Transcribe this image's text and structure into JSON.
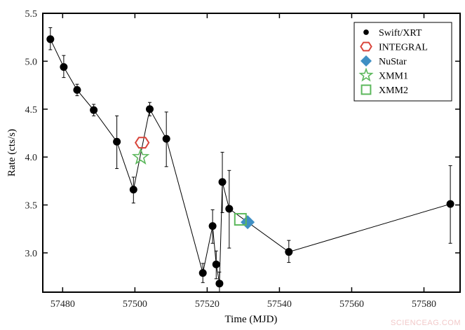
{
  "chart_data": {
    "type": "scatter",
    "title": "",
    "xlabel": "Time (MJD)",
    "ylabel": "Rate (cts/s)",
    "xlim": [
      57474.5,
      57590
    ],
    "ylim": [
      2.59,
      5.5
    ],
    "xticks": [
      57480,
      57500,
      57520,
      57540,
      57560,
      57580
    ],
    "yticks": [
      3.0,
      3.5,
      4.0,
      4.5,
      5.0,
      5.5
    ],
    "xtick_labels": [
      "57480",
      "57500",
      "57520",
      "57540",
      "57560",
      "57580"
    ],
    "ytick_labels": [
      "3.0",
      "3.5",
      "4.0",
      "4.5",
      "5.0",
      "5.5"
    ],
    "grid": false,
    "legend_position": "top-right",
    "series": [
      {
        "name": "Swift/XRT",
        "marker": "circle",
        "color": "#000000",
        "connected": true,
        "x": [
          57476.6,
          57480.3,
          57484.0,
          57488.6,
          57495.0,
          57499.6,
          57504.1,
          57508.7,
          57518.8,
          57521.5,
          57522.5,
          57523.4,
          57524.2,
          57526.1,
          57542.6,
          57587.3
        ],
        "y": [
          5.23,
          4.94,
          4.7,
          4.49,
          4.16,
          3.66,
          4.5,
          4.19,
          2.79,
          3.28,
          2.88,
          2.68,
          3.74,
          3.46,
          3.01,
          3.51
        ],
        "err_low": [
          5.12,
          4.83,
          4.64,
          4.43,
          3.88,
          3.52,
          4.43,
          3.9,
          2.69,
          3.1,
          2.73,
          2.59,
          3.42,
          3.05,
          2.9,
          3.1
        ],
        "err_high": [
          5.35,
          5.06,
          4.76,
          4.55,
          4.43,
          3.79,
          4.57,
          4.47,
          2.89,
          3.45,
          3.02,
          2.8,
          4.05,
          3.86,
          3.13,
          3.91
        ]
      },
      {
        "name": "INTEGRAL",
        "marker": "hexagon",
        "color": "#d9443a",
        "x": [
          57502.0
        ],
        "y": [
          4.15
        ]
      },
      {
        "name": "NuStar",
        "marker": "diamond",
        "color": "#3f8fc4",
        "x": [
          57531.2
        ],
        "y": [
          3.32
        ]
      },
      {
        "name": "XMM1",
        "marker": "star",
        "color": "#5cb85c",
        "x": [
          57501.6
        ],
        "y": [
          4.0
        ]
      },
      {
        "name": "XMM2",
        "marker": "square",
        "color": "#5cb85c",
        "x": [
          57529.2
        ],
        "y": [
          3.35
        ]
      }
    ]
  },
  "watermark": "SCIENCEAG.COM"
}
